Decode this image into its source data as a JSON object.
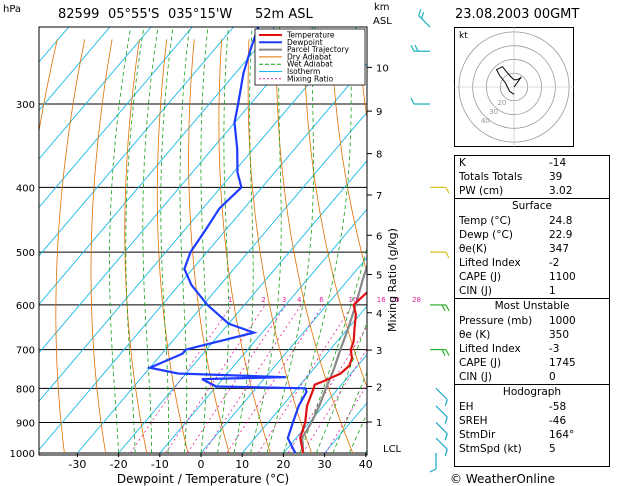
{
  "header": {
    "station": "82599",
    "lat": "05°55'S",
    "lon": "035°15'W",
    "elev": "52m ASL",
    "datetime": "23.08.2003 00GMT",
    "hpa_unit": "hPa",
    "km_unit": "km",
    "asl_unit": "ASL"
  },
  "chart_data": {
    "type": "skew-t log-p",
    "xlabel": "Dewpoint / Temperature (°C)",
    "ylabel_right": "Mixing Ratio (g/kg)",
    "x_ticks": [
      -30,
      -20,
      -10,
      0,
      10,
      20,
      30,
      40
    ],
    "p_ticks": [
      300,
      400,
      500,
      600,
      700,
      800,
      900,
      1000
    ],
    "km_ticks": [
      1,
      2,
      3,
      4,
      5,
      6,
      7,
      8,
      9,
      10
    ],
    "lcl_label": "LCL",
    "mixing_ratio_labels": [
      "1",
      "2",
      "3",
      "4",
      "6",
      "10",
      "16",
      "20",
      "28"
    ],
    "legend": [
      "Temperature",
      "Dewpoint",
      "Parcel Trajectory",
      "Dry Adiabat",
      "Wet Adiabat",
      "Isotherm",
      "Mixing Ratio"
    ],
    "colors": {
      "temperature": "#e01010",
      "dewpoint": "#1e3cff",
      "parcel": "#888888",
      "dry_adiabat": "#e07000",
      "wet_adiabat": "#18a018",
      "isotherm": "#18b8e8",
      "mixing_ratio": "#e020a0"
    },
    "temperature": [
      [
        1000,
        24.8
      ],
      [
        950,
        21
      ],
      [
        900,
        19
      ],
      [
        850,
        16
      ],
      [
        800,
        14
      ],
      [
        790,
        13.5
      ],
      [
        780,
        15
      ],
      [
        760,
        17.5
      ],
      [
        740,
        18
      ],
      [
        720,
        17
      ],
      [
        700,
        15
      ],
      [
        680,
        14
      ],
      [
        650,
        11.5
      ],
      [
        620,
        9
      ],
      [
        600,
        6.5
      ],
      [
        580,
        7
      ],
      [
        550,
        8
      ],
      [
        520,
        7.5
      ],
      [
        500,
        6
      ],
      [
        470,
        3
      ],
      [
        450,
        1.5
      ],
      [
        420,
        -1
      ],
      [
        400,
        -3
      ],
      [
        370,
        -6
      ],
      [
        350,
        -8.5
      ],
      [
        320,
        -13
      ],
      [
        300,
        -16
      ],
      [
        270,
        -21
      ],
      [
        250,
        -25
      ],
      [
        240,
        -26
      ],
      [
        230,
        -28
      ]
    ],
    "dewpoint": [
      [
        1000,
        22.9
      ],
      [
        950,
        18
      ],
      [
        900,
        16
      ],
      [
        850,
        14
      ],
      [
        810,
        13
      ],
      [
        800,
        12
      ],
      [
        795,
        -10
      ],
      [
        775,
        -15
      ],
      [
        770,
        5
      ],
      [
        760,
        -22
      ],
      [
        745,
        -30
      ],
      [
        710,
        -25
      ],
      [
        700,
        -25
      ],
      [
        660,
        -12
      ],
      [
        640,
        -20
      ],
      [
        600,
        -29
      ],
      [
        560,
        -37
      ],
      [
        530,
        -42
      ],
      [
        500,
        -44
      ],
      [
        460,
        -45
      ],
      [
        430,
        -46
      ],
      [
        400,
        -45
      ],
      [
        380,
        -49
      ],
      [
        350,
        -54
      ],
      [
        320,
        -60
      ],
      [
        300,
        -63
      ],
      [
        270,
        -68
      ],
      [
        250,
        -71
      ],
      [
        230,
        -74
      ]
    ],
    "parcel": [
      [
        1000,
        24.8
      ],
      [
        950,
        21.5
      ],
      [
        900,
        20.5
      ],
      [
        850,
        19
      ],
      [
        800,
        17
      ],
      [
        750,
        15
      ],
      [
        700,
        12.5
      ],
      [
        650,
        10
      ],
      [
        600,
        7
      ],
      [
        550,
        3.5
      ],
      [
        500,
        0
      ],
      [
        450,
        -4.5
      ],
      [
        400,
        -10
      ],
      [
        350,
        -16
      ],
      [
        300,
        -23
      ],
      [
        250,
        -32
      ],
      [
        230,
        -36
      ]
    ],
    "wind_barbs": [
      [
        1000,
        "S",
        5
      ],
      [
        950,
        "SE",
        5
      ],
      [
        900,
        "SE",
        5
      ],
      [
        850,
        "SE",
        5
      ],
      [
        800,
        "SE",
        5
      ],
      [
        700,
        "E",
        10
      ],
      [
        600,
        "E",
        10
      ],
      [
        500,
        "E",
        5
      ],
      [
        400,
        "E",
        5
      ],
      [
        300,
        "W",
        5
      ],
      [
        250,
        "W",
        10
      ],
      [
        230,
        "NW",
        10
      ]
    ]
  },
  "hodograph": {
    "label": "kt",
    "rings": [
      "10",
      "20",
      "30",
      "40"
    ],
    "trace": [
      [
        0,
        -5
      ],
      [
        -3,
        -3
      ],
      [
        -6,
        3
      ],
      [
        -10,
        8
      ],
      [
        -12,
        12
      ],
      [
        -8,
        14
      ],
      [
        -3,
        8
      ],
      [
        0,
        5
      ],
      [
        2,
        5
      ],
      [
        4,
        6
      ],
      [
        5,
        7
      ],
      [
        3,
        4
      ],
      [
        0,
        0
      ]
    ]
  },
  "indices": {
    "top": [
      {
        "k": "K",
        "v": "-14"
      },
      {
        "k": "Totals Totals",
        "v": "39"
      },
      {
        "k": "PW (cm)",
        "v": "3.02"
      }
    ],
    "surface_title": "Surface",
    "surface": [
      {
        "k": "Temp (°C)",
        "v": "24.8"
      },
      {
        "k": "Dewp (°C)",
        "v": "22.9"
      },
      {
        "k": "θe(K)",
        "v": "347"
      },
      {
        "k": "Lifted Index",
        "v": "-2"
      },
      {
        "k": "CAPE (J)",
        "v": "1100"
      },
      {
        "k": "CIN (J)",
        "v": "1"
      }
    ],
    "mu_title": "Most Unstable",
    "mu": [
      {
        "k": "Pressure (mb)",
        "v": "1000"
      },
      {
        "k": "θe (K)",
        "v": "350"
      },
      {
        "k": "Lifted Index",
        "v": "-3"
      },
      {
        "k": "CAPE (J)",
        "v": "1745"
      },
      {
        "k": "CIN (J)",
        "v": "0"
      }
    ],
    "hodo_title": "Hodograph",
    "hodo": [
      {
        "k": "EH",
        "v": "-58"
      },
      {
        "k": "SREH",
        "v": "-46"
      },
      {
        "k": "StmDir",
        "v": "164°"
      },
      {
        "k": "StmSpd (kt)",
        "v": "5"
      }
    ]
  },
  "copyright": "© WeatherOnline"
}
